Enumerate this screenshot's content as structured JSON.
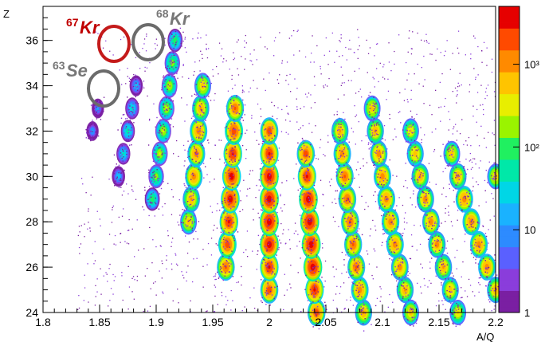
{
  "chart_data": {
    "type": "heatmap",
    "xlabel": "A/Q",
    "ylabel": "Z",
    "xlim": [
      1.8,
      2.2
    ],
    "ylim": [
      24,
      37.5
    ],
    "x_ticks": [
      "1.8",
      "1.85",
      "1.9",
      "1.95",
      "2",
      "2.05",
      "2.1",
      "2.15",
      "2.2"
    ],
    "y_ticks": [
      "24",
      "26",
      "28",
      "30",
      "32",
      "34",
      "36"
    ],
    "log_color_scale": true,
    "colorbar_ticks": [
      {
        "value": 1,
        "label": "1"
      },
      {
        "value": 10,
        "label": "10"
      },
      {
        "value": 100,
        "label": "10²"
      },
      {
        "value": 1000,
        "label": "10³"
      }
    ],
    "colorbar_range": [
      1,
      5000
    ],
    "isotope_labels": [
      {
        "mass": "67",
        "element": "Kr",
        "aq": 1.861,
        "z": 36,
        "color": "#c00000"
      },
      {
        "mass": "68",
        "element": "Kr",
        "aq": 1.889,
        "z": 36,
        "color": "#777777"
      },
      {
        "mass": "63",
        "element": "Se",
        "aq": 1.853,
        "z": 34,
        "color": "#777777"
      }
    ],
    "blob_lines": [
      {
        "tz": 1,
        "z_range": [
          32,
          33
        ],
        "peak": 15
      },
      {
        "tz": 2,
        "z_range": [
          30,
          34
        ],
        "peak": 60
      },
      {
        "tz": 3,
        "z_range": [
          29,
          36
        ],
        "peak": 300
      },
      {
        "tz": 4,
        "z_range": [
          28,
          34
        ],
        "peak": 1500
      },
      {
        "tz": 5,
        "z_range": [
          26,
          33
        ],
        "peak": 4000
      },
      {
        "tz": 6,
        "z_range": [
          25,
          32
        ],
        "peak": 5000
      },
      {
        "tz": 7,
        "z_range": [
          24,
          31
        ],
        "peak": 5000
      },
      {
        "tz": 8,
        "z_range": [
          24,
          32
        ],
        "peak": 2000
      },
      {
        "tz": 9,
        "z_range": [
          24,
          33
        ],
        "peak": 1500
      },
      {
        "tz": 10,
        "z_range": [
          24,
          32
        ],
        "peak": 1200
      },
      {
        "tz": 11,
        "z_range": [
          24,
          31
        ],
        "peak": 1500
      },
      {
        "tz": 12,
        "z_range": [
          24,
          30
        ],
        "peak": 1500
      },
      {
        "tz": 13,
        "z_range": [
          24,
          29
        ],
        "peak": 1500
      },
      {
        "tz": 14,
        "z_range": [
          24,
          27
        ],
        "peak": 1000
      }
    ]
  },
  "colors": {
    "scale": [
      "#7a1fa2",
      "#8a3ddb",
      "#5a60ff",
      "#2d8bff",
      "#1ab2ff",
      "#00d6e6",
      "#00e8a8",
      "#20f060",
      "#9af400",
      "#e8ee00",
      "#ffc400",
      "#ff8a00",
      "#ff4a00",
      "#e60000"
    ],
    "circle_red": "#c41a1a",
    "circle_grey": "#6b6b6b"
  }
}
